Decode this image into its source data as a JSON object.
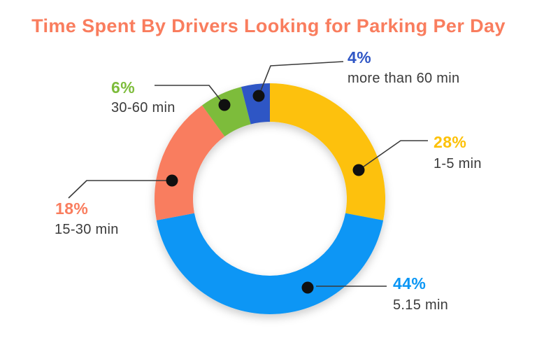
{
  "title": "Time Spent By Drivers Looking for Parking Per Day",
  "title_color": "#F97D5E",
  "background_color": "#FFFFFF",
  "label_text_color": "#3B3B3B",
  "leader_line_color": "#3A3A3A",
  "leader_dot_color": "#101010",
  "chart_data": {
    "type": "pie",
    "subtype": "donut",
    "title": "Time Spent By Drivers Looking for Parking Per Day",
    "unit": "percent",
    "direction": "clockwise",
    "start_angle_deg": 0,
    "legend_position": "callout-labels",
    "segments": [
      {
        "label": "1-5 min",
        "value": 28,
        "pct_label": "28%",
        "color": "#FDC107"
      },
      {
        "label": "5.15 min",
        "value": 44,
        "pct_label": "44%",
        "color": "#0996F5"
      },
      {
        "label": "15-30 min",
        "value": 18,
        "pct_label": "18%",
        "color": "#F97D5E"
      },
      {
        "label": "30-60 min",
        "value": 6,
        "pct_label": "6%",
        "color": "#7DBC3B"
      },
      {
        "label": "more than 60 min",
        "value": 4,
        "pct_label": "4%",
        "color": "#2F56C5"
      }
    ]
  }
}
